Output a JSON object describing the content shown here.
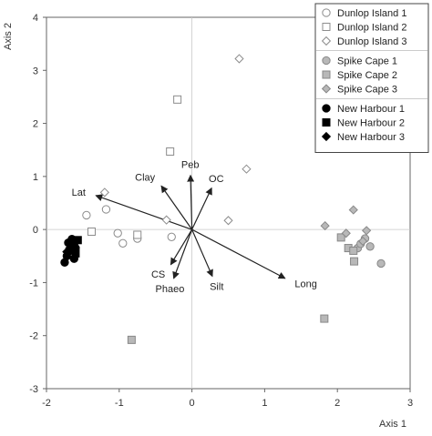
{
  "chart_data": {
    "type": "scatter",
    "xlabel": "Axis 1",
    "ylabel": "Axis 2",
    "xlim": [
      -2,
      3
    ],
    "ylim": [
      -3,
      4
    ],
    "xticks": [
      -2,
      -1,
      0,
      1,
      2,
      3
    ],
    "yticks": [
      -3,
      -2,
      -1,
      0,
      1,
      2,
      3,
      4
    ],
    "legend_position": "top-right",
    "series": [
      {
        "name": "Dunlop Island 1",
        "marker": "circle",
        "fill": "#ffffff",
        "stroke": "#8c8c8c",
        "points": [
          [
            -1.45,
            0.27
          ],
          [
            -1.18,
            0.38
          ],
          [
            -1.02,
            -0.07
          ],
          [
            -0.75,
            -0.17
          ],
          [
            -0.28,
            -0.14
          ],
          [
            -0.95,
            -0.26
          ]
        ]
      },
      {
        "name": "Dunlop Island 2",
        "marker": "square",
        "fill": "#ffffff",
        "stroke": "#8c8c8c",
        "points": [
          [
            -0.2,
            2.45
          ],
          [
            -0.3,
            1.47
          ],
          [
            -0.75,
            -0.1
          ],
          [
            -1.38,
            -0.04
          ]
        ]
      },
      {
        "name": "Dunlop Island 3",
        "marker": "diamond",
        "fill": "#ffffff",
        "stroke": "#8c8c8c",
        "points": [
          [
            0.65,
            3.22
          ],
          [
            0.75,
            1.14
          ],
          [
            0.5,
            0.17
          ],
          [
            -0.35,
            0.18
          ],
          [
            -1.2,
            0.7
          ]
        ]
      },
      {
        "name": "Spike Cape 1",
        "marker": "circle",
        "fill": "#b8b8b8",
        "stroke": "#888888",
        "points": [
          [
            2.38,
            -0.17
          ],
          [
            2.45,
            -0.32
          ],
          [
            2.28,
            -0.35
          ],
          [
            2.6,
            -0.64
          ],
          [
            2.32,
            -0.27
          ]
        ]
      },
      {
        "name": "Spike Cape 2",
        "marker": "square",
        "fill": "#b8b8b8",
        "stroke": "#888888",
        "points": [
          [
            1.82,
            -1.68
          ],
          [
            -0.83,
            -2.08
          ],
          [
            2.23,
            -0.6
          ],
          [
            2.15,
            -0.35
          ],
          [
            2.05,
            -0.15
          ],
          [
            2.22,
            -0.4
          ]
        ]
      },
      {
        "name": "Spike Cape 3",
        "marker": "diamond",
        "fill": "#b8b8b8",
        "stroke": "#888888",
        "points": [
          [
            1.83,
            0.07
          ],
          [
            2.22,
            0.37
          ],
          [
            2.4,
            -0.02
          ],
          [
            2.12,
            -0.07
          ],
          [
            2.35,
            -0.22
          ]
        ]
      },
      {
        "name": "New Harbour 1",
        "marker": "circle",
        "fill": "#000000",
        "stroke": "#000000",
        "points": [
          [
            -1.75,
            -0.62
          ],
          [
            -1.68,
            -0.4
          ],
          [
            -1.7,
            -0.25
          ],
          [
            -1.62,
            -0.55
          ],
          [
            -1.65,
            -0.18
          ],
          [
            -1.72,
            -0.5
          ],
          [
            -1.6,
            -0.35
          ]
        ]
      },
      {
        "name": "New Harbour 2",
        "marker": "square",
        "fill": "#000000",
        "stroke": "#000000",
        "points": [
          [
            -1.57,
            -0.2
          ],
          [
            -1.62,
            -0.3
          ],
          [
            -1.66,
            -0.27
          ],
          [
            -1.6,
            -0.45
          ]
        ]
      },
      {
        "name": "New Harbour 3",
        "marker": "diamond",
        "fill": "#000000",
        "stroke": "#000000",
        "points": [
          [
            -1.68,
            -0.35
          ],
          [
            -1.62,
            -0.22
          ],
          [
            -1.72,
            -0.42
          ]
        ]
      }
    ],
    "vectors": [
      {
        "label": "Lat",
        "x": -1.32,
        "y": 0.64
      },
      {
        "label": "Clay",
        "x": -0.42,
        "y": 0.82
      },
      {
        "label": "Peb",
        "x": -0.02,
        "y": 1.02
      },
      {
        "label": "OC",
        "x": 0.27,
        "y": 0.78
      },
      {
        "label": "Long",
        "x": 1.28,
        "y": -0.92
      },
      {
        "label": "CS",
        "x": -0.29,
        "y": -0.66
      },
      {
        "label": "Phaeo",
        "x": -0.25,
        "y": -0.92
      },
      {
        "label": "Silt",
        "x": 0.28,
        "y": -0.88
      }
    ]
  }
}
